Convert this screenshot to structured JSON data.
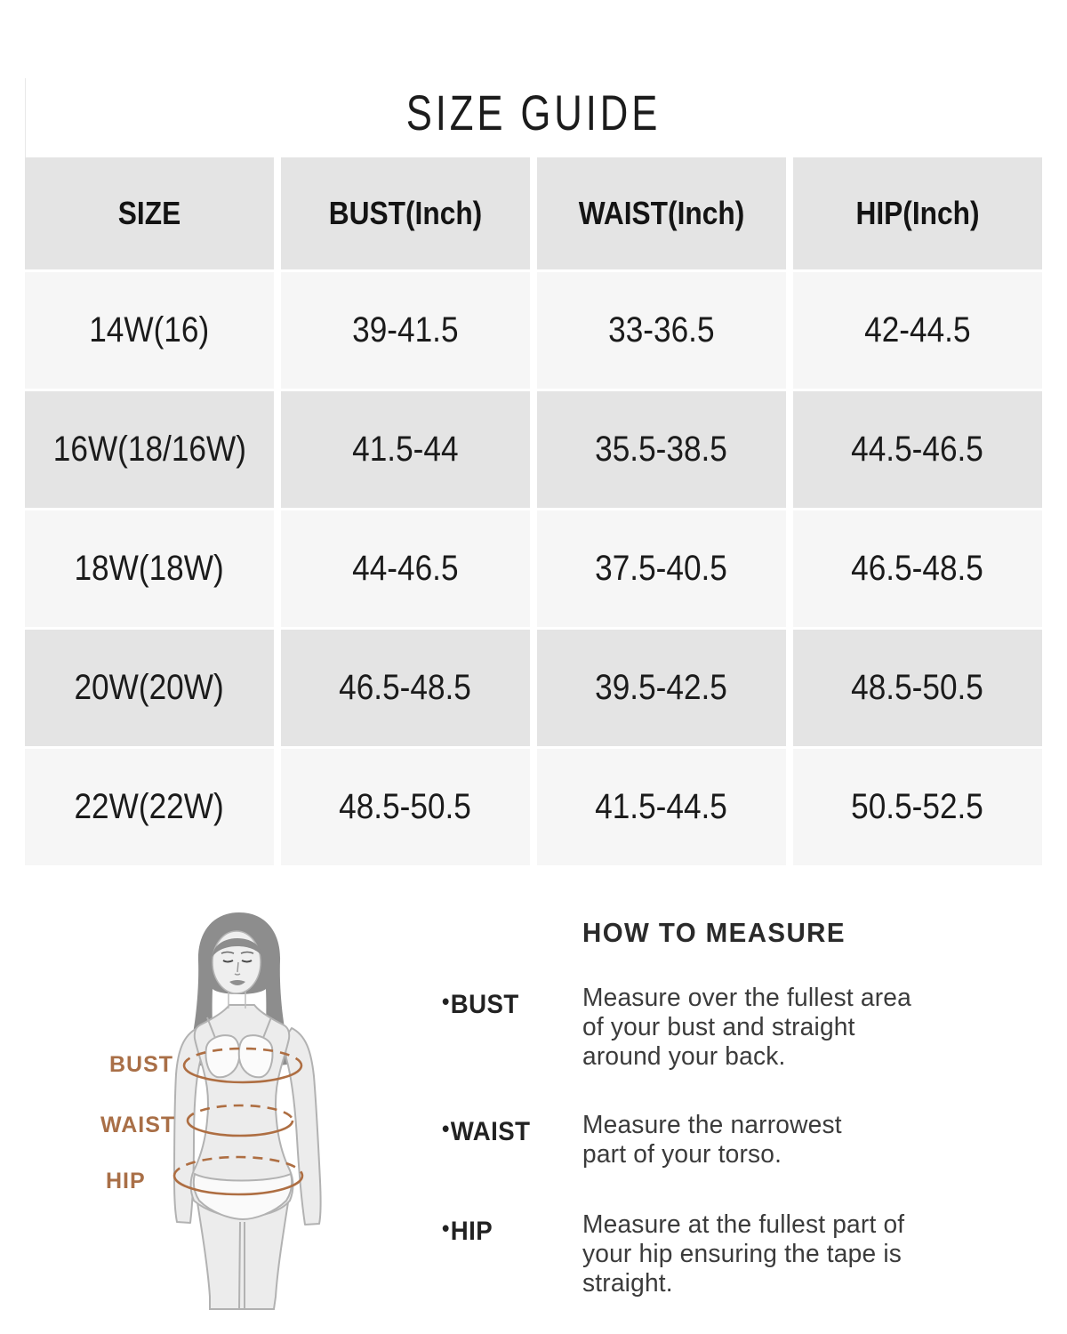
{
  "title": "SIZE GUIDE",
  "table": {
    "columns": [
      "SIZE",
      "BUST(Inch)",
      "WAIST(Inch)",
      "HIP(Inch)"
    ],
    "rows": [
      [
        "14W(16)",
        "39-41.5",
        "33-36.5",
        "42-44.5"
      ],
      [
        "16W(18/16W)",
        "41.5-44",
        "35.5-38.5",
        "44.5-46.5"
      ],
      [
        "18W(18W)",
        "44-46.5",
        "37.5-40.5",
        "46.5-48.5"
      ],
      [
        "20W(20W)",
        "46.5-48.5",
        "39.5-42.5",
        "48.5-50.5"
      ],
      [
        "22W(22W)",
        "48.5-50.5",
        "41.5-44.5",
        "50.5-52.5"
      ]
    ]
  },
  "figure_labels": {
    "bust": "BUST",
    "waist": "WAIST",
    "hip": "HIP"
  },
  "how_to_measure": {
    "heading": "HOW TO MEASURE",
    "bullet": "•",
    "items": [
      {
        "label": "BUST",
        "lines": [
          "Measure over the fullest area",
          "of your bust and straight",
          "around your back."
        ]
      },
      {
        "label": "WAIST",
        "lines": [
          "Measure the narrowest",
          "part of your torso."
        ]
      },
      {
        "label": "HIP",
        "lines": [
          "Measure at the fullest part of",
          "your hip ensuring the tape is",
          "straight."
        ]
      }
    ]
  },
  "colors": {
    "accent_terracotta": "#ae6e42",
    "header_row_bg": "#e4e4e4",
    "row_light_bg": "#f6f6f6",
    "row_dark_bg": "#e4e4e4",
    "figure_body": "#ececec",
    "figure_hair": "#8d8d8d",
    "text_dark": "#1b1b1b"
  }
}
